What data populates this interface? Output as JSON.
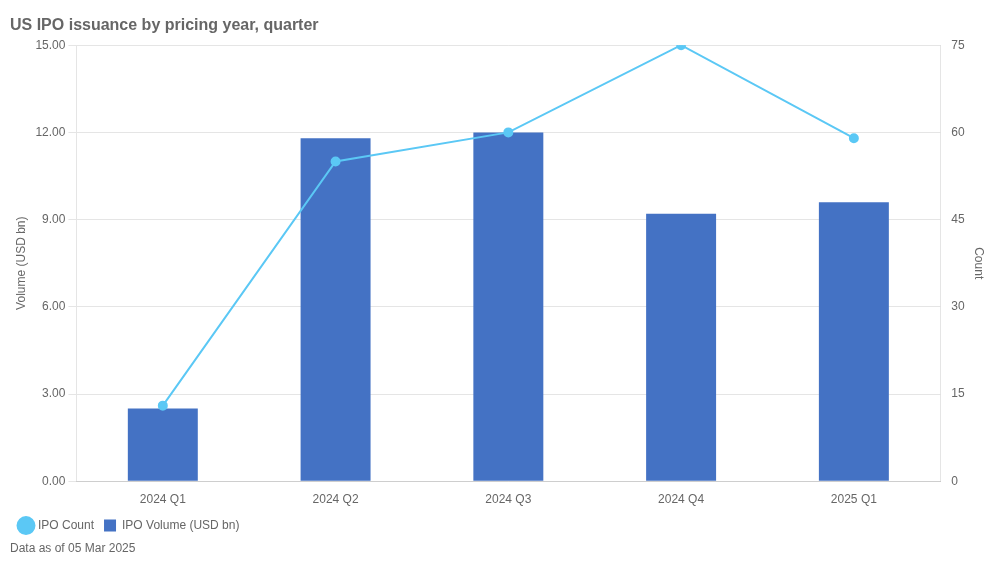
{
  "chart_data": {
    "type": "bar",
    "title": "US IPO issuance by pricing year, quarter",
    "ylabel": "Volume (USD bn)",
    "y2label": "Count",
    "footnote": "Data as of 05 Mar 2025",
    "categories": [
      "2024 Q1",
      "2024 Q2",
      "2024 Q3",
      "2024 Q4",
      "2025 Q1"
    ],
    "series": [
      {
        "name": "IPO Volume (USD bn)",
        "type": "bar",
        "color": "#4472C4",
        "values": [
          2.5,
          11.8,
          12.0,
          9.2,
          9.6
        ]
      },
      {
        "name": "IPO Count",
        "type": "line",
        "color": "#5BC8F5",
        "marker": "circle",
        "axis": "y2",
        "values": [
          13,
          55,
          60,
          75,
          59
        ]
      }
    ],
    "ylim": [
      0,
      15
    ],
    "yticks": [
      {
        "value": 0,
        "label": "0.00"
      },
      {
        "value": 3,
        "label": "3.00"
      },
      {
        "value": 6,
        "label": "6.00"
      },
      {
        "value": 9,
        "label": "9.00"
      },
      {
        "value": 12,
        "label": "12.00"
      },
      {
        "value": 15,
        "label": "15.00"
      }
    ],
    "y2lim": [
      0,
      75
    ],
    "y2ticks": [
      0,
      15,
      30,
      45,
      60,
      75
    ],
    "grid": true,
    "legend": "bottom"
  }
}
